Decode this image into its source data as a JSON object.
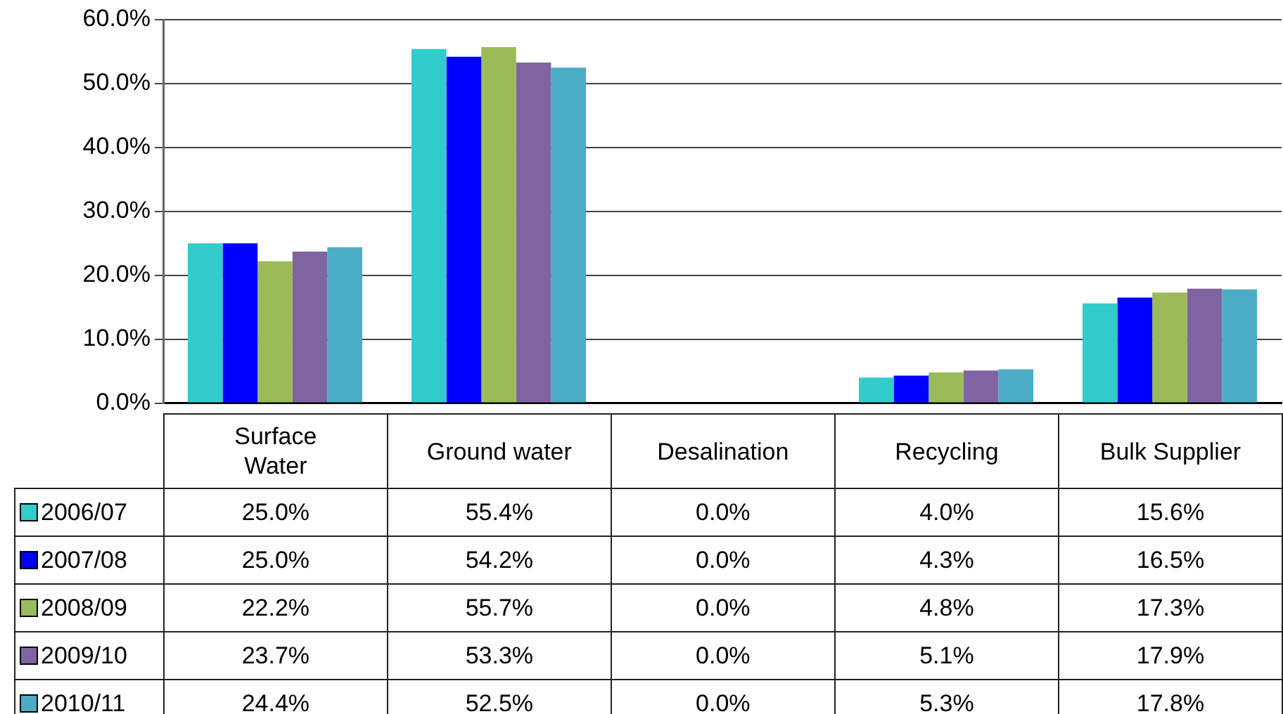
{
  "chart_data": {
    "type": "bar",
    "categories": [
      "Surface\nWater",
      "Ground water",
      "Desalination",
      "Recycling",
      "Bulk Supplier"
    ],
    "series": [
      {
        "name": "2006/07",
        "color": "#33cccc",
        "values": [
          25.0,
          55.4,
          0.0,
          4.0,
          15.6
        ]
      },
      {
        "name": "2007/08",
        "color": "#0000ff",
        "values": [
          25.0,
          54.2,
          0.0,
          4.3,
          16.5
        ]
      },
      {
        "name": "2008/09",
        "color": "#9bbb59",
        "values": [
          22.2,
          55.7,
          0.0,
          4.8,
          17.3
        ]
      },
      {
        "name": "2009/10",
        "color": "#8064a2",
        "values": [
          23.7,
          53.3,
          0.0,
          5.1,
          17.9
        ]
      },
      {
        "name": "2010/11",
        "color": "#4bacc6",
        "values": [
          24.4,
          52.5,
          0.0,
          5.3,
          17.8
        ]
      }
    ],
    "ylim": [
      0,
      60
    ],
    "yticks": [
      {
        "value": 0,
        "label": "0.0%"
      },
      {
        "value": 10,
        "label": "10.0%"
      },
      {
        "value": 20,
        "label": "20.0%"
      },
      {
        "value": 30,
        "label": "30.0%"
      },
      {
        "value": 40,
        "label": "40.0%"
      },
      {
        "value": 50,
        "label": "50.0%"
      },
      {
        "value": 60,
        "label": "60.0%"
      }
    ],
    "value_labels": [
      [
        "25.0%",
        "55.4%",
        "0.0%",
        "4.0%",
        "15.6%"
      ],
      [
        "25.0%",
        "54.2%",
        "0.0%",
        "4.3%",
        "16.5%"
      ],
      [
        "22.2%",
        "55.7%",
        "0.0%",
        "4.8%",
        "17.3%"
      ],
      [
        "23.7%",
        "53.3%",
        "0.0%",
        "5.1%",
        "17.9%"
      ],
      [
        "24.4%",
        "52.5%",
        "0.0%",
        "5.3%",
        "17.8%"
      ]
    ],
    "grid": "y",
    "legend": "bottom"
  }
}
